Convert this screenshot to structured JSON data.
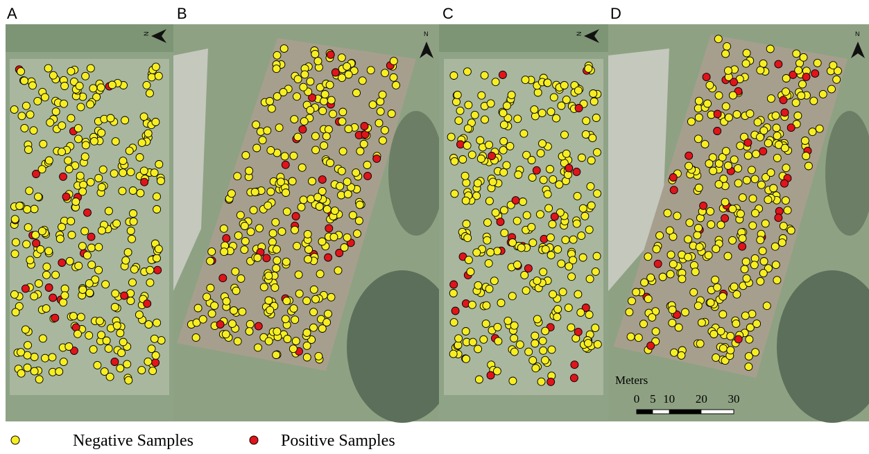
{
  "panels": [
    {
      "label": "A"
    },
    {
      "label": "B"
    },
    {
      "label": "C"
    },
    {
      "label": "D"
    }
  ],
  "north_label": "N",
  "legend": {
    "negative": "Negative Samples",
    "positive": "Positive Samples"
  },
  "scale_bar": {
    "title": "Meters",
    "ticks": [
      0,
      5,
      10,
      20,
      30
    ]
  }
}
